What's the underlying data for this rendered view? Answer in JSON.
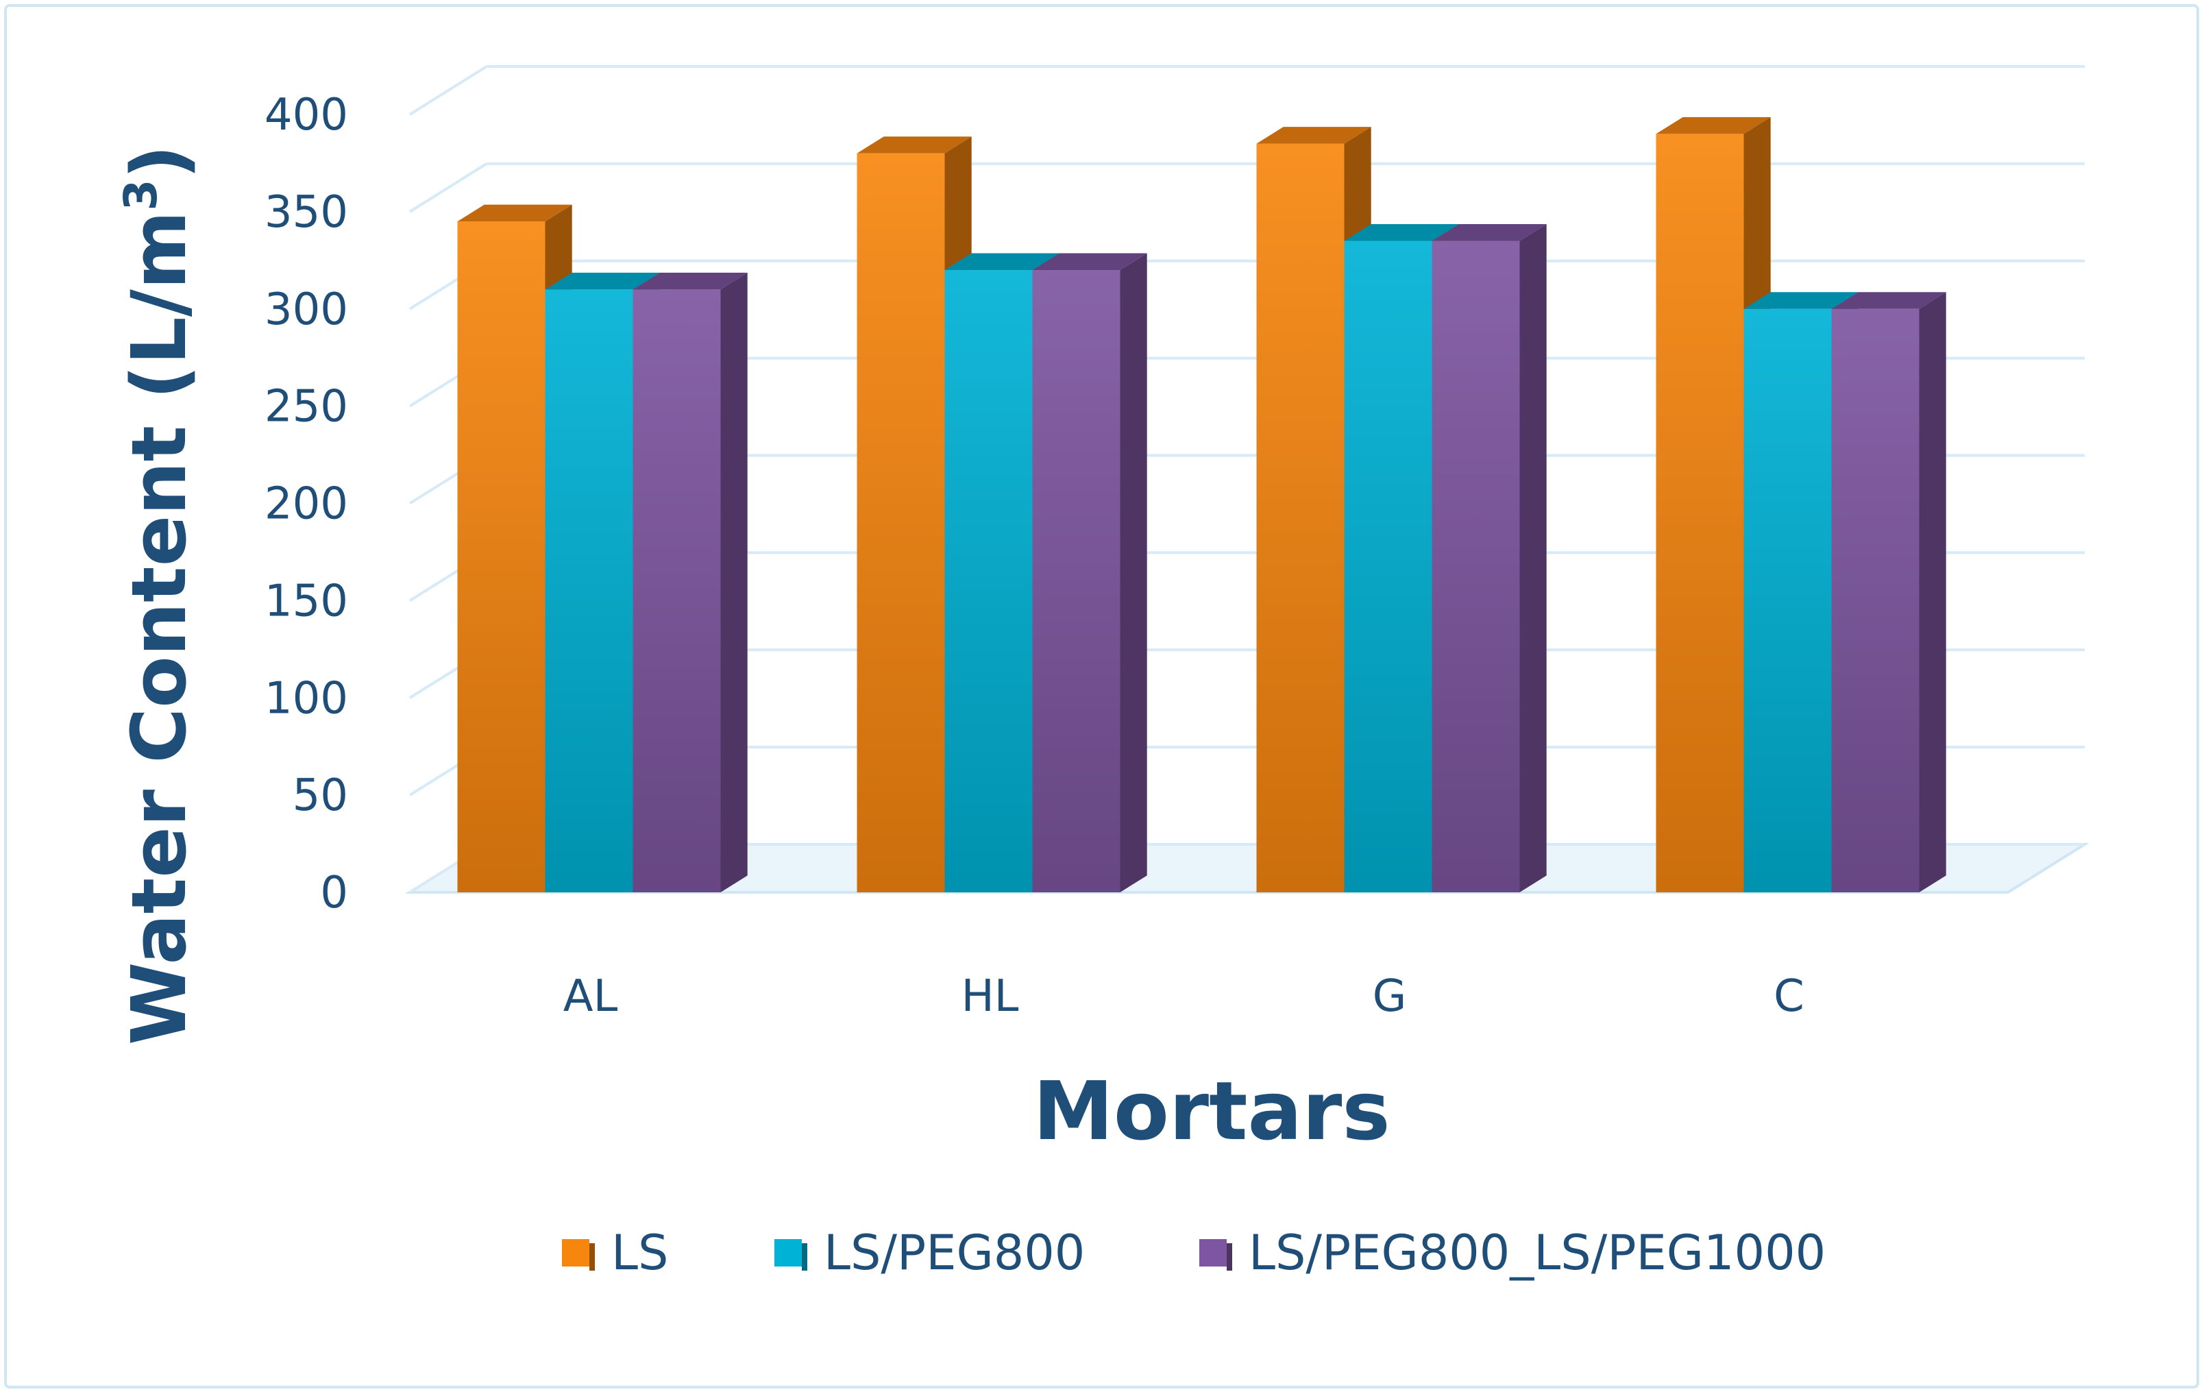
{
  "chart_data": {
    "type": "bar",
    "title": "",
    "xlabel": "Mortars",
    "ylabel": "Water Content (L/m",
    "ylabel_superscript": "3",
    "ylabel_close": ")",
    "categories": [
      "AL",
      "HL",
      "G",
      "C"
    ],
    "yticks": [
      "0",
      "50",
      "100",
      "150",
      "200",
      "250",
      "300",
      "350",
      "400"
    ],
    "ylim": [
      0,
      400
    ],
    "grid": true,
    "style": "3d-clustered-column",
    "legend_position": "bottom",
    "series": [
      {
        "name": "LS",
        "values": [
          345,
          380,
          385,
          390
        ],
        "color": "#f7860f"
      },
      {
        "name": "LS/PEG800",
        "values": [
          310,
          320,
          335,
          300
        ],
        "color": "#00b2d6"
      },
      {
        "name": "LS/PEG800_LS/PEG1000",
        "values": [
          310,
          320,
          335,
          300
        ],
        "color": "#7e55a0"
      }
    ]
  }
}
